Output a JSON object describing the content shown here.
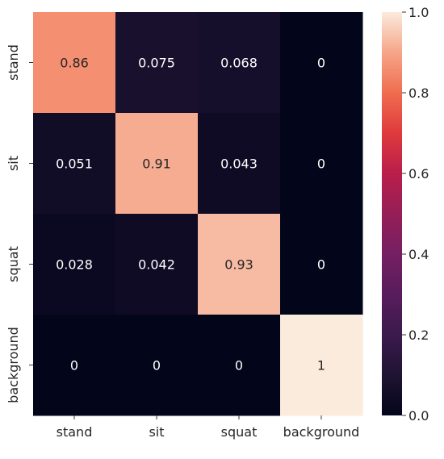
{
  "chart_data": {
    "type": "heatmap",
    "title": "",
    "xlabel": "",
    "ylabel": "",
    "x_categories": [
      "stand",
      "sit",
      "squat",
      "background"
    ],
    "y_categories": [
      "stand",
      "sit",
      "squat",
      "background"
    ],
    "values": [
      [
        0.86,
        0.075,
        0.068,
        0
      ],
      [
        0.051,
        0.91,
        0.043,
        0
      ],
      [
        0.028,
        0.042,
        0.93,
        0
      ],
      [
        0,
        0,
        0,
        1
      ]
    ],
    "cell_labels": [
      [
        "0.86",
        "0.075",
        "0.068",
        "0"
      ],
      [
        "0.051",
        "0.91",
        "0.043",
        "0"
      ],
      [
        "0.028",
        "0.042",
        "0.93",
        "0"
      ],
      [
        "0",
        "0",
        "0",
        "1"
      ]
    ],
    "colorbar": {
      "colormap": "rocket",
      "vmin": 0.0,
      "vmax": 1.0,
      "ticks": [
        "0.0",
        "0.2",
        "0.4",
        "0.6",
        "0.8",
        "1.0"
      ]
    },
    "grid": false,
    "legend": "colorbar-right"
  }
}
